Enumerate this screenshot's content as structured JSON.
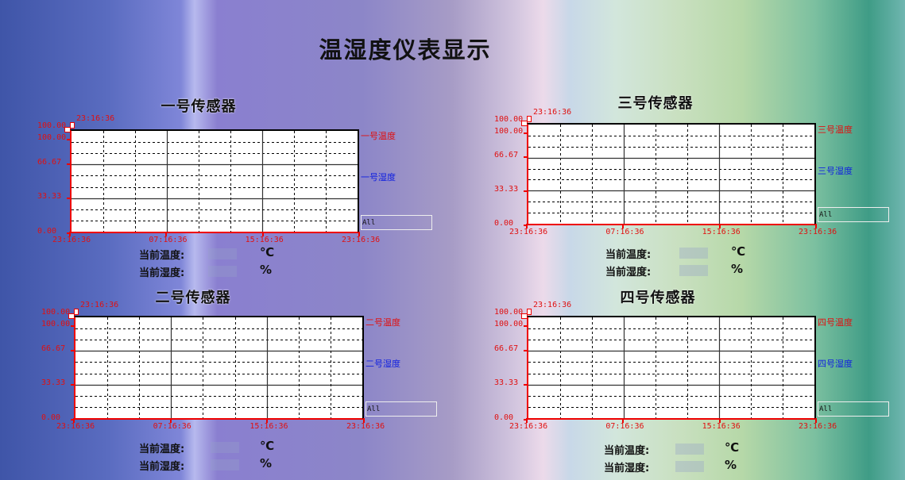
{
  "header": {
    "title": "温湿度仪表显示"
  },
  "panels": [
    {
      "title": "一号传感器",
      "cursor_time": "23:16:36",
      "cursor_value": "100.00",
      "legend": {
        "temperature": "一号温度",
        "humidity": "一号湿度"
      },
      "filter": "All",
      "temp_label": "当前温度:",
      "hum_label": "当前湿度:",
      "temp_value": "",
      "hum_value": "",
      "temp_unit": "℃",
      "hum_unit": "%"
    },
    {
      "title": "二号传感器",
      "cursor_time": "23:16:36",
      "cursor_value": "100.00",
      "legend": {
        "temperature": "二号温度",
        "humidity": "二号湿度"
      },
      "filter": "All",
      "temp_label": "当前温度:",
      "hum_label": "当前湿度:",
      "temp_value": "",
      "hum_value": "",
      "temp_unit": "℃",
      "hum_unit": "%"
    },
    {
      "title": "三号传感器",
      "cursor_time": "23:16:36",
      "cursor_value": "100.00",
      "legend": {
        "temperature": "三号温度",
        "humidity": "三号湿度"
      },
      "filter": "All",
      "temp_label": "当前温度:",
      "hum_label": "当前湿度:",
      "temp_value": "",
      "hum_value": "",
      "temp_unit": "℃",
      "hum_unit": "%"
    },
    {
      "title": "四号传感器",
      "cursor_time": "23:16:36",
      "cursor_value": "100.00",
      "legend": {
        "temperature": "四号温度",
        "humidity": "四号湿度"
      },
      "filter": "All",
      "temp_label": "当前温度:",
      "hum_label": "当前湿度:",
      "temp_value": "",
      "hum_value": "",
      "temp_unit": "℃",
      "hum_unit": "%"
    }
  ],
  "colors": {
    "temperature": "#e01010",
    "humidity": "#1020e0",
    "axis": "#e01010"
  },
  "chart_data": [
    {
      "type": "line",
      "ylim": [
        0,
        100
      ],
      "y_ticks": [
        "100.00",
        "66.67",
        "33.33",
        "0.00"
      ],
      "x_ticks": [
        "23:16:36",
        "07:16:36",
        "15:16:36",
        "23:16:36"
      ],
      "grid": true,
      "legend": "right",
      "series": [
        {
          "name": "一号温度",
          "values": []
        },
        {
          "name": "一号湿度",
          "values": []
        }
      ]
    },
    {
      "type": "line",
      "ylim": [
        0,
        100
      ],
      "y_ticks": [
        "100.00",
        "66.67",
        "33.33",
        "0.00"
      ],
      "x_ticks": [
        "23:16:36",
        "07:16:36",
        "15:16:36",
        "23:16:36"
      ],
      "grid": true,
      "legend": "right",
      "series": [
        {
          "name": "二号温度",
          "values": []
        },
        {
          "name": "二号湿度",
          "values": []
        }
      ]
    },
    {
      "type": "line",
      "ylim": [
        0,
        100
      ],
      "y_ticks": [
        "100.00",
        "66.67",
        "33.33",
        "0.00"
      ],
      "x_ticks": [
        "23:16:36",
        "07:16:36",
        "15:16:36",
        "23:16:36"
      ],
      "grid": true,
      "legend": "right",
      "series": [
        {
          "name": "三号温度",
          "values": []
        },
        {
          "name": "三号湿度",
          "values": []
        }
      ]
    },
    {
      "type": "line",
      "ylim": [
        0,
        100
      ],
      "y_ticks": [
        "100.00",
        "66.67",
        "33.33",
        "0.00"
      ],
      "x_ticks": [
        "23:16:36",
        "07:16:36",
        "15:16:36",
        "23:16:36"
      ],
      "grid": true,
      "legend": "right",
      "series": [
        {
          "name": "四号温度",
          "values": []
        },
        {
          "name": "四号湿度",
          "values": []
        }
      ]
    }
  ]
}
